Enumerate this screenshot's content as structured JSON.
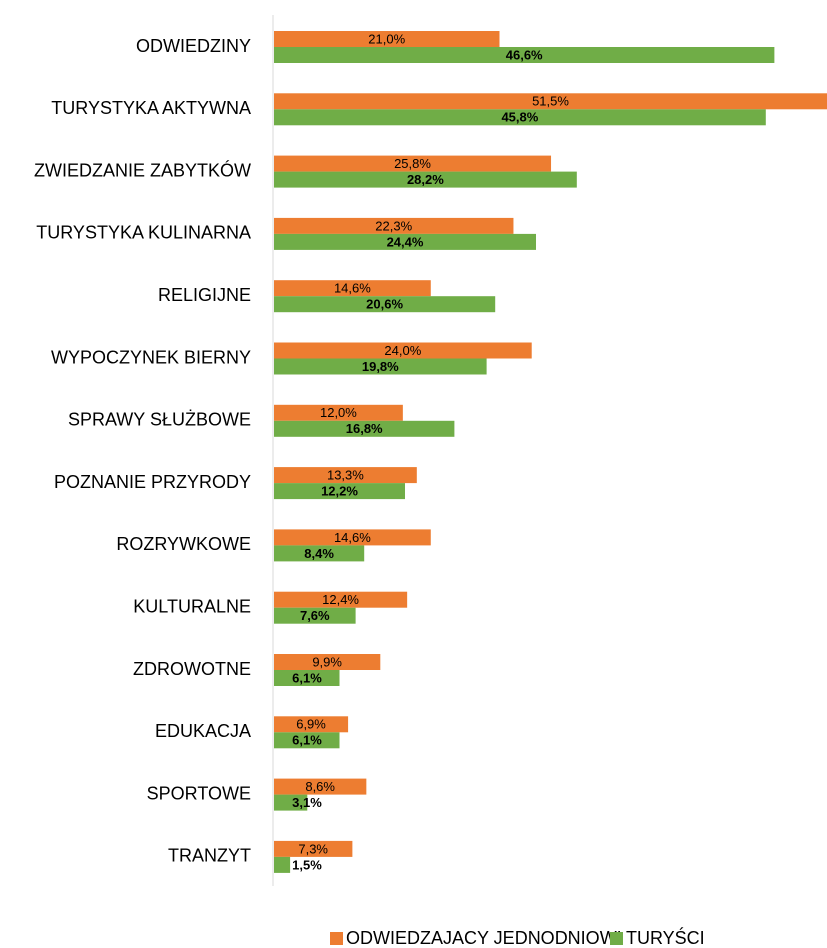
{
  "chart_data": {
    "type": "bar",
    "orientation": "horizontal",
    "categories": [
      "ODWIEDZINY",
      "TURYSTYKA AKTYWNA",
      "ZWIEDZANIE ZABYTKÓW",
      "TURYSTYKA KULINARNA",
      "RELIGIJNE",
      "WYPOCZYNEK BIERNY",
      "SPRAWY SŁUŻBOWE",
      "POZNANIE PRZYRODY",
      "ROZRYWKOWE",
      "KULTURALNE",
      "ZDROWOTNE",
      "EDUKACJA",
      "SPORTOWE",
      "TRANZYT"
    ],
    "series": [
      {
        "name": "ODWIEDZAJACY JEDNODNIOWI",
        "color": "#ed7d31",
        "values": [
          21.0,
          51.5,
          25.8,
          22.3,
          14.6,
          24.0,
          12.0,
          13.3,
          14.6,
          12.4,
          9.9,
          6.9,
          8.6,
          7.3
        ],
        "value_labels": [
          "21,0%",
          "51,5%",
          "25,8%",
          "22,3%",
          "14,6%",
          "24,0%",
          "12,0%",
          "13,3%",
          "14,6%",
          "12,4%",
          "9,9%",
          "6,9%",
          "8,6%",
          "7,3%"
        ]
      },
      {
        "name": "TURYŚCI",
        "color": "#70ad47",
        "values": [
          46.6,
          45.8,
          28.2,
          24.4,
          20.6,
          19.8,
          16.8,
          12.2,
          8.4,
          7.6,
          6.1,
          6.1,
          3.1,
          1.5
        ],
        "value_labels": [
          "46,6%",
          "45,8%",
          "28,2%",
          "24,4%",
          "20,6%",
          "19,8%",
          "16,8%",
          "12,2%",
          "8,4%",
          "7,6%",
          "6,1%",
          "6,1%",
          "3,1%",
          "1,5%"
        ]
      }
    ],
    "legend": "bottom"
  }
}
